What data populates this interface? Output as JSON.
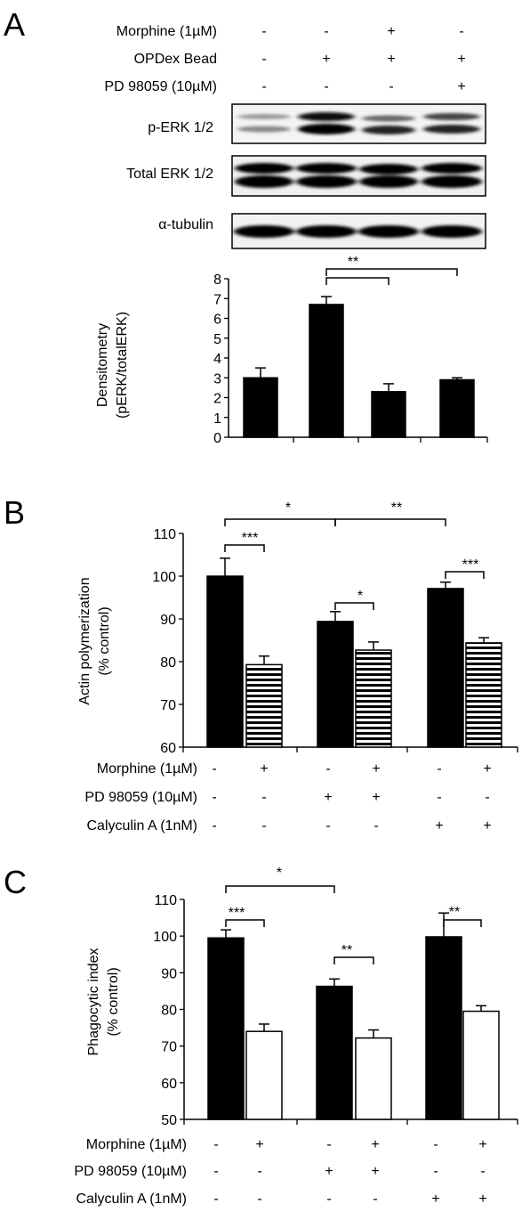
{
  "panels": {
    "a": {
      "letter": "A",
      "treatment_rows": [
        {
          "label": "Morphine (1µM)",
          "marks": [
            "-",
            "-",
            "+",
            "-"
          ]
        },
        {
          "label": "OPDex Bead",
          "marks": [
            "-",
            "+",
            "+",
            "+"
          ]
        },
        {
          "label": "PD 98059 (10µM)",
          "marks": [
            "-",
            "-",
            "-",
            "+"
          ]
        }
      ],
      "blot_labels": [
        "p-ERK 1/2",
        "Total ERK 1/2",
        "α-tubulin"
      ],
      "ylabel_lines": [
        "Densitometry",
        "(pERK/totalERK)"
      ],
      "ticks": [
        "0",
        "1",
        "2",
        "3",
        "4",
        "5",
        "6",
        "7",
        "8"
      ],
      "brackets": [
        {
          "text": "**"
        }
      ]
    },
    "b": {
      "letter": "B",
      "ylabel_lines": [
        "Actin polymerization",
        "(% control)"
      ],
      "ticks": [
        "60",
        "70",
        "80",
        "90",
        "100",
        "110"
      ],
      "treatment_rows": [
        {
          "label": "Morphine (1µM)",
          "marks": [
            "-",
            "+",
            "-",
            "+",
            "-",
            "+"
          ]
        },
        {
          "label": "PD 98059 (10µM)",
          "marks": [
            "-",
            "-",
            "+",
            "+",
            "-",
            "-"
          ]
        },
        {
          "label": "Calyculin A (1nM)",
          "marks": [
            "-",
            "-",
            "-",
            "-",
            "+",
            "+"
          ]
        }
      ],
      "brackets": [
        {
          "text": "*"
        },
        {
          "text": "**"
        },
        {
          "text": "***"
        },
        {
          "text": "*"
        },
        {
          "text": "***"
        }
      ]
    },
    "c": {
      "letter": "C",
      "ylabel_lines": [
        "Phagocytic index",
        "(% control)"
      ],
      "ticks": [
        "50",
        "60",
        "70",
        "80",
        "90",
        "100",
        "110"
      ],
      "treatment_rows": [
        {
          "label": "Morphine (1µM)",
          "marks": [
            "-",
            "+",
            "-",
            "+",
            "-",
            "+"
          ]
        },
        {
          "label": "PD 98059 (10µM)",
          "marks": [
            "-",
            "-",
            "+",
            "+",
            "-",
            "-"
          ]
        },
        {
          "label": "Calyculin A (1nM)",
          "marks": [
            "-",
            "-",
            "-",
            "-",
            "+",
            "+"
          ]
        }
      ],
      "brackets": [
        {
          "text": "*"
        },
        {
          "text": "***"
        },
        {
          "text": "**"
        },
        {
          "text": "**"
        }
      ]
    }
  },
  "colors": {
    "axis": "#000000",
    "solid_bar": "#000000",
    "open_bar": "#ffffff",
    "stripe": "#000000"
  },
  "chart_data": [
    {
      "type": "bar",
      "ylabel": "Densitometry (pERK/totalERK)",
      "ylim": [
        0,
        8
      ],
      "values": [
        3.0,
        6.7,
        2.3,
        2.9
      ],
      "errors": [
        0.5,
        0.4,
        0.4,
        0.1
      ],
      "grid": false
    },
    {
      "type": "bar",
      "ylabel": "Actin polymerization (% control)",
      "ylim": [
        60,
        110
      ],
      "values": [
        100.0,
        79.3,
        89.4,
        82.7,
        97.1,
        84.4
      ],
      "errors": [
        4.2,
        2.0,
        2.3,
        1.9,
        1.5,
        1.2
      ],
      "bar_styles": [
        "solid",
        "striped",
        "solid",
        "striped",
        "solid",
        "striped"
      ],
      "grid": false
    },
    {
      "type": "bar",
      "ylabel": "Phagocytic index (% control)",
      "ylim": [
        50,
        110
      ],
      "values": [
        99.5,
        74.0,
        86.3,
        72.2,
        99.8,
        79.5
      ],
      "errors": [
        2.2,
        2.0,
        2.0,
        2.2,
        6.5,
        1.5
      ],
      "bar_styles": [
        "solid",
        "open",
        "solid",
        "open",
        "solid",
        "open"
      ],
      "grid": false
    }
  ]
}
